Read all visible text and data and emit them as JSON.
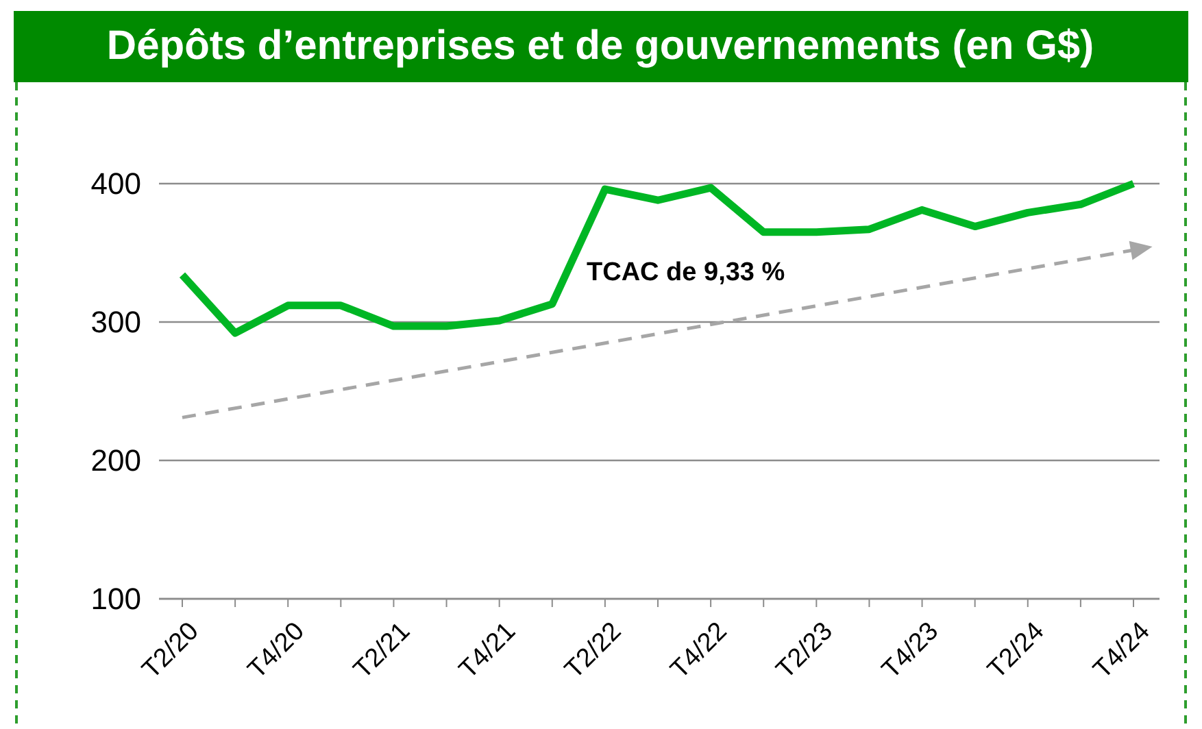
{
  "chart_data": {
    "type": "line",
    "title": "Dépôts d’entreprises et de gouvernements (en G$)",
    "categories": [
      "T2/20",
      null,
      "T4/20",
      null,
      "T2/21",
      null,
      "T4/21",
      null,
      "T2/22",
      null,
      "T4/22",
      null,
      "T2/23",
      null,
      "T4/23",
      null,
      "T2/24",
      null,
      "T4/24"
    ],
    "series": [
      {
        "color": "#00b624",
        "values": [
          334,
          292,
          312,
          312,
          297,
          297,
          301,
          313,
          396,
          388,
          397,
          365,
          365,
          367,
          381,
          369,
          379,
          385,
          400
        ]
      },
      {
        "color": "#a6a6a6",
        "line_style": "dashed",
        "values": [
          231,
          null,
          null,
          null,
          null,
          null,
          null,
          null,
          null,
          null,
          null,
          null,
          null,
          null,
          null,
          null,
          null,
          null,
          352
        ]
      }
    ],
    "annotations": [
      "TCAC de 9,33 %"
    ],
    "ylim": [
      100,
      400
    ],
    "yticks": [
      100,
      200,
      300,
      400
    ],
    "grid": "y"
  }
}
